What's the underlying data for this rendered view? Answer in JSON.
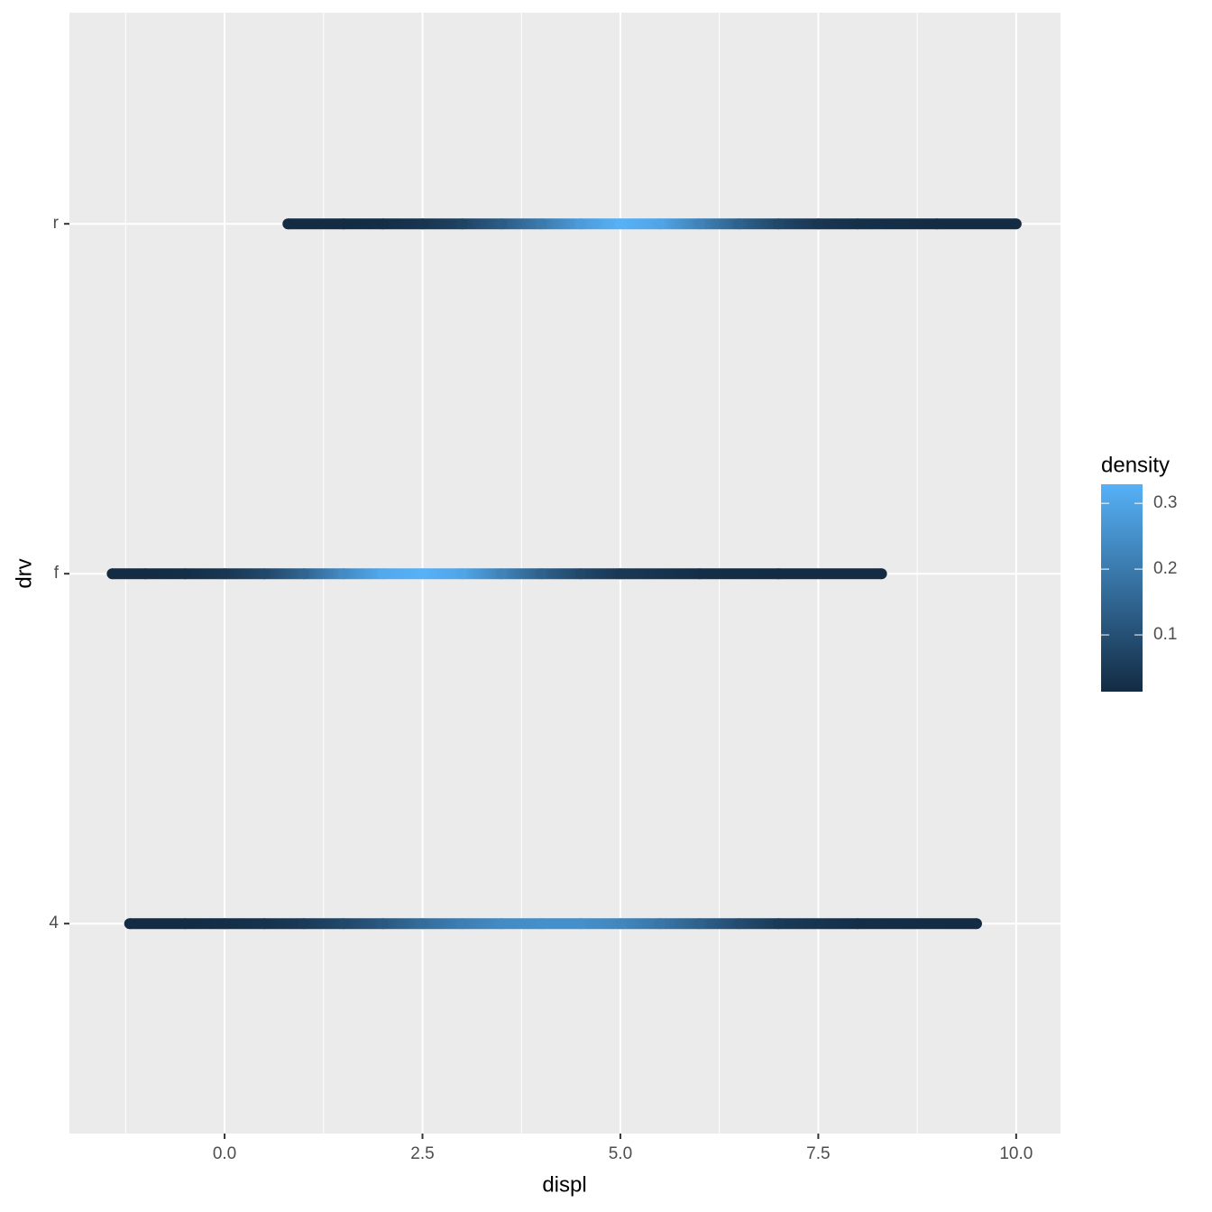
{
  "chart_data": {
    "type": "density_line",
    "x_label": "displ",
    "y_label": "drv",
    "categories": [
      "4",
      "f",
      "r"
    ],
    "xlim": [
      -1.96,
      10.56
    ],
    "xticks": [
      {
        "value": 0,
        "label": "0.0"
      },
      {
        "value": 2.5,
        "label": "2.5"
      },
      {
        "value": 5,
        "label": "5.0"
      },
      {
        "value": 7.5,
        "label": "7.5"
      },
      {
        "value": 10,
        "label": "10.0"
      }
    ],
    "xminor": [
      -1.25,
      1.25,
      3.75,
      6.25,
      8.75
    ],
    "grid": true,
    "series": [
      {
        "category": 0,
        "x": [
          -1.2,
          -0.5,
          0,
          0.5,
          1,
          1.5,
          2,
          2.5,
          3,
          3.5,
          4,
          4.5,
          5,
          5.5,
          6,
          6.5,
          7,
          8,
          9.5
        ],
        "density": [
          0.014,
          0.016,
          0.02,
          0.03,
          0.05,
          0.08,
          0.12,
          0.17,
          0.21,
          0.24,
          0.25,
          0.25,
          0.23,
          0.19,
          0.14,
          0.09,
          0.05,
          0.02,
          0.014
        ]
      },
      {
        "category": 1,
        "x": [
          -1.42,
          -1,
          -0.5,
          0,
          0.5,
          1,
          1.5,
          2,
          2.5,
          3,
          3.5,
          4,
          4.5,
          5,
          6,
          7,
          8.3
        ],
        "density": [
          0.014,
          0.015,
          0.02,
          0.04,
          0.08,
          0.15,
          0.24,
          0.31,
          0.329,
          0.3,
          0.22,
          0.14,
          0.08,
          0.045,
          0.02,
          0.015,
          0.014
        ]
      },
      {
        "category": 2,
        "x": [
          0.8,
          1.5,
          2,
          2.5,
          3,
          3.5,
          4,
          4.5,
          5,
          5.5,
          6,
          6.5,
          7,
          7.5,
          8,
          9,
          10
        ],
        "density": [
          0.014,
          0.016,
          0.02,
          0.035,
          0.07,
          0.13,
          0.2,
          0.28,
          0.329,
          0.3,
          0.22,
          0.14,
          0.08,
          0.04,
          0.025,
          0.016,
          0.014
        ]
      }
    ],
    "legend": {
      "title": "density",
      "limits": [
        0.0137,
        0.329
      ],
      "low": "#132B43",
      "high": "#56B1F7",
      "ticks": [
        0.1,
        0.2,
        0.3
      ]
    }
  }
}
